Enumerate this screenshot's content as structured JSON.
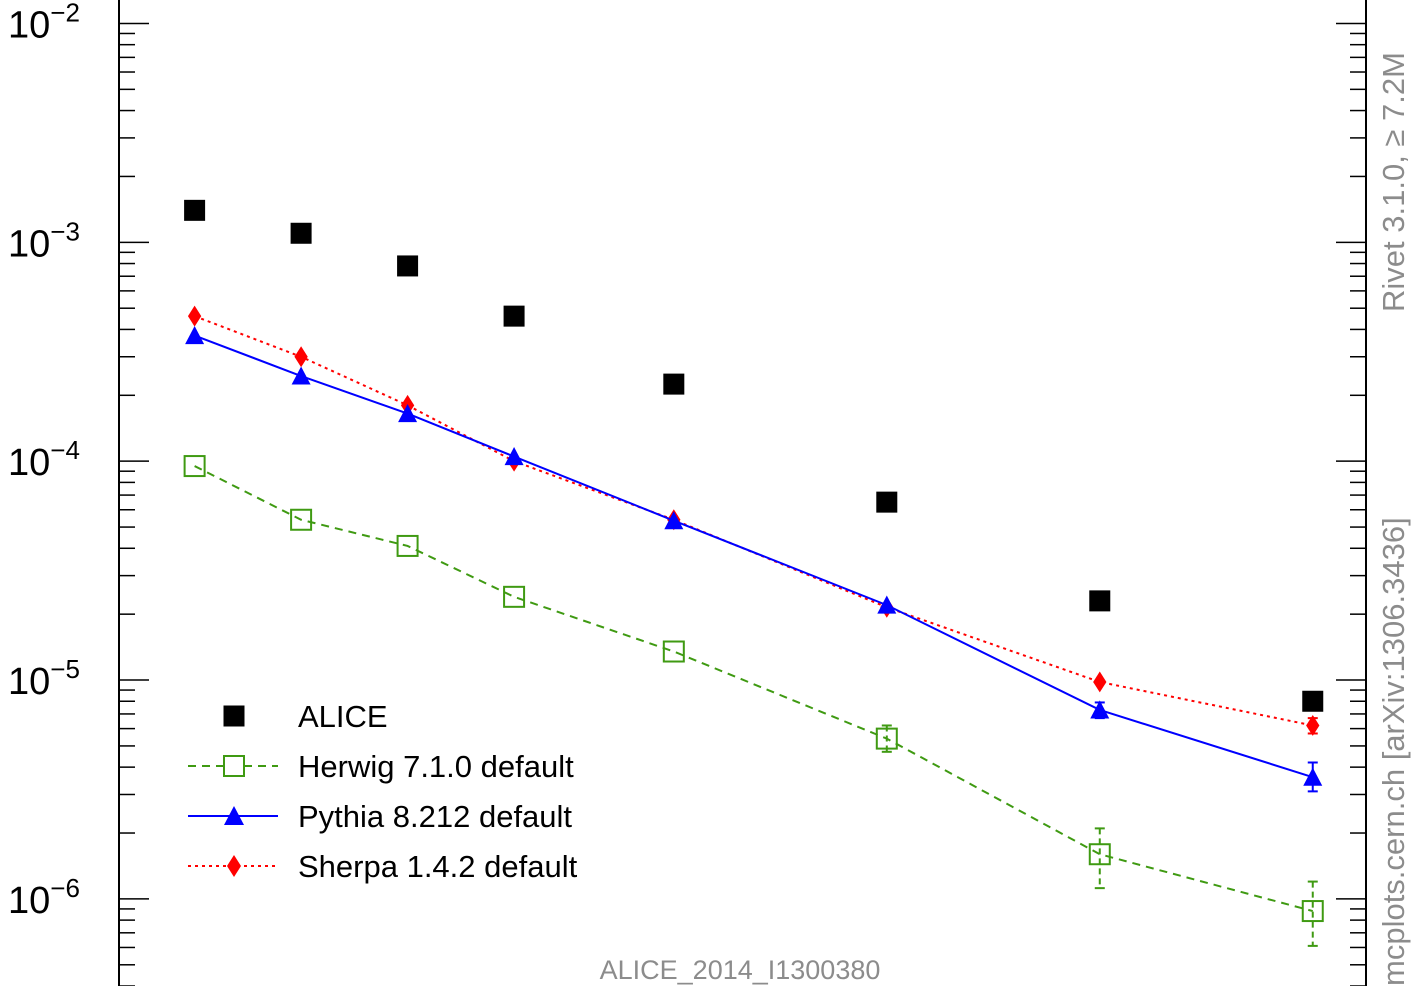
{
  "chart_data": {
    "type": "scatter",
    "yscale": "log",
    "ylim": [
      4e-07,
      0.0128
    ],
    "x": [
      1,
      2,
      3,
      4,
      5.5,
      7.5,
      9.5,
      11.5
    ],
    "xlim": [
      0.29,
      12.0
    ],
    "ytick_labels": [
      {
        "value": 0.01,
        "base": "10",
        "exp": "−2"
      },
      {
        "value": 0.001,
        "base": "10",
        "exp": "−3"
      },
      {
        "value": 0.0001,
        "base": "10",
        "exp": "−4"
      },
      {
        "value": 1e-05,
        "base": "10",
        "exp": "−5"
      },
      {
        "value": 1e-06,
        "base": "10",
        "exp": "−6"
      }
    ],
    "series": [
      {
        "name": "ALICE",
        "color": "#000000",
        "marker": "square-filled",
        "line": "none",
        "values": [
          0.0014,
          0.0011,
          0.00078,
          0.00046,
          0.000225,
          6.5e-05,
          2.3e-05,
          8e-06
        ],
        "err_lo": [
          0,
          0,
          0,
          0,
          0,
          0,
          0,
          0
        ],
        "err_hi": [
          0,
          0,
          0,
          0,
          0,
          0,
          0,
          0
        ]
      },
      {
        "name": "Herwig 7.1.0 default",
        "color": "#3f9a12",
        "marker": "square-open",
        "line": "dashed",
        "values": [
          9.5e-05,
          5.4e-05,
          4.1e-05,
          2.4e-05,
          1.35e-05,
          5.4e-06,
          1.6e-06,
          8.8e-07
        ],
        "err_lo": [
          0,
          0,
          0,
          0,
          0,
          7e-07,
          4.8e-07,
          2.7e-07
        ],
        "err_hi": [
          0,
          0,
          0,
          0,
          0,
          8e-07,
          5e-07,
          3.2e-07
        ]
      },
      {
        "name": "Pythia 8.212 default",
        "color": "#0000ff",
        "marker": "triangle-filled",
        "line": "solid",
        "values": [
          0.000375,
          0.000245,
          0.000165,
          0.000105,
          5.35e-05,
          2.2e-05,
          7.3e-06,
          3.6e-06
        ],
        "err_lo": [
          0,
          0,
          0,
          0,
          0,
          0,
          6e-07,
          5e-07
        ],
        "err_hi": [
          0,
          0,
          0,
          0,
          0,
          0,
          6e-07,
          6e-07
        ]
      },
      {
        "name": "Sherpa 1.4.2 default",
        "color": "#ff0000",
        "marker": "diamond-filled",
        "line": "dotted",
        "values": [
          0.00046,
          0.0003,
          0.00018,
          0.0001,
          5.4e-05,
          2.15e-05,
          9.8e-06,
          6.2e-06
        ],
        "err_lo": [
          0,
          0,
          0,
          0,
          0,
          0,
          0,
          5e-07
        ],
        "err_hi": [
          0,
          0,
          0,
          0,
          0,
          0,
          0,
          5e-07
        ]
      }
    ],
    "legend_position": "bottom-left",
    "caption": "ALICE_2014_I1300380",
    "side_label": "mcplots.cern.ch [arXiv:1306.3436]",
    "top_side_label": "Rivet 3.1.0, ≥ 7.2M"
  }
}
